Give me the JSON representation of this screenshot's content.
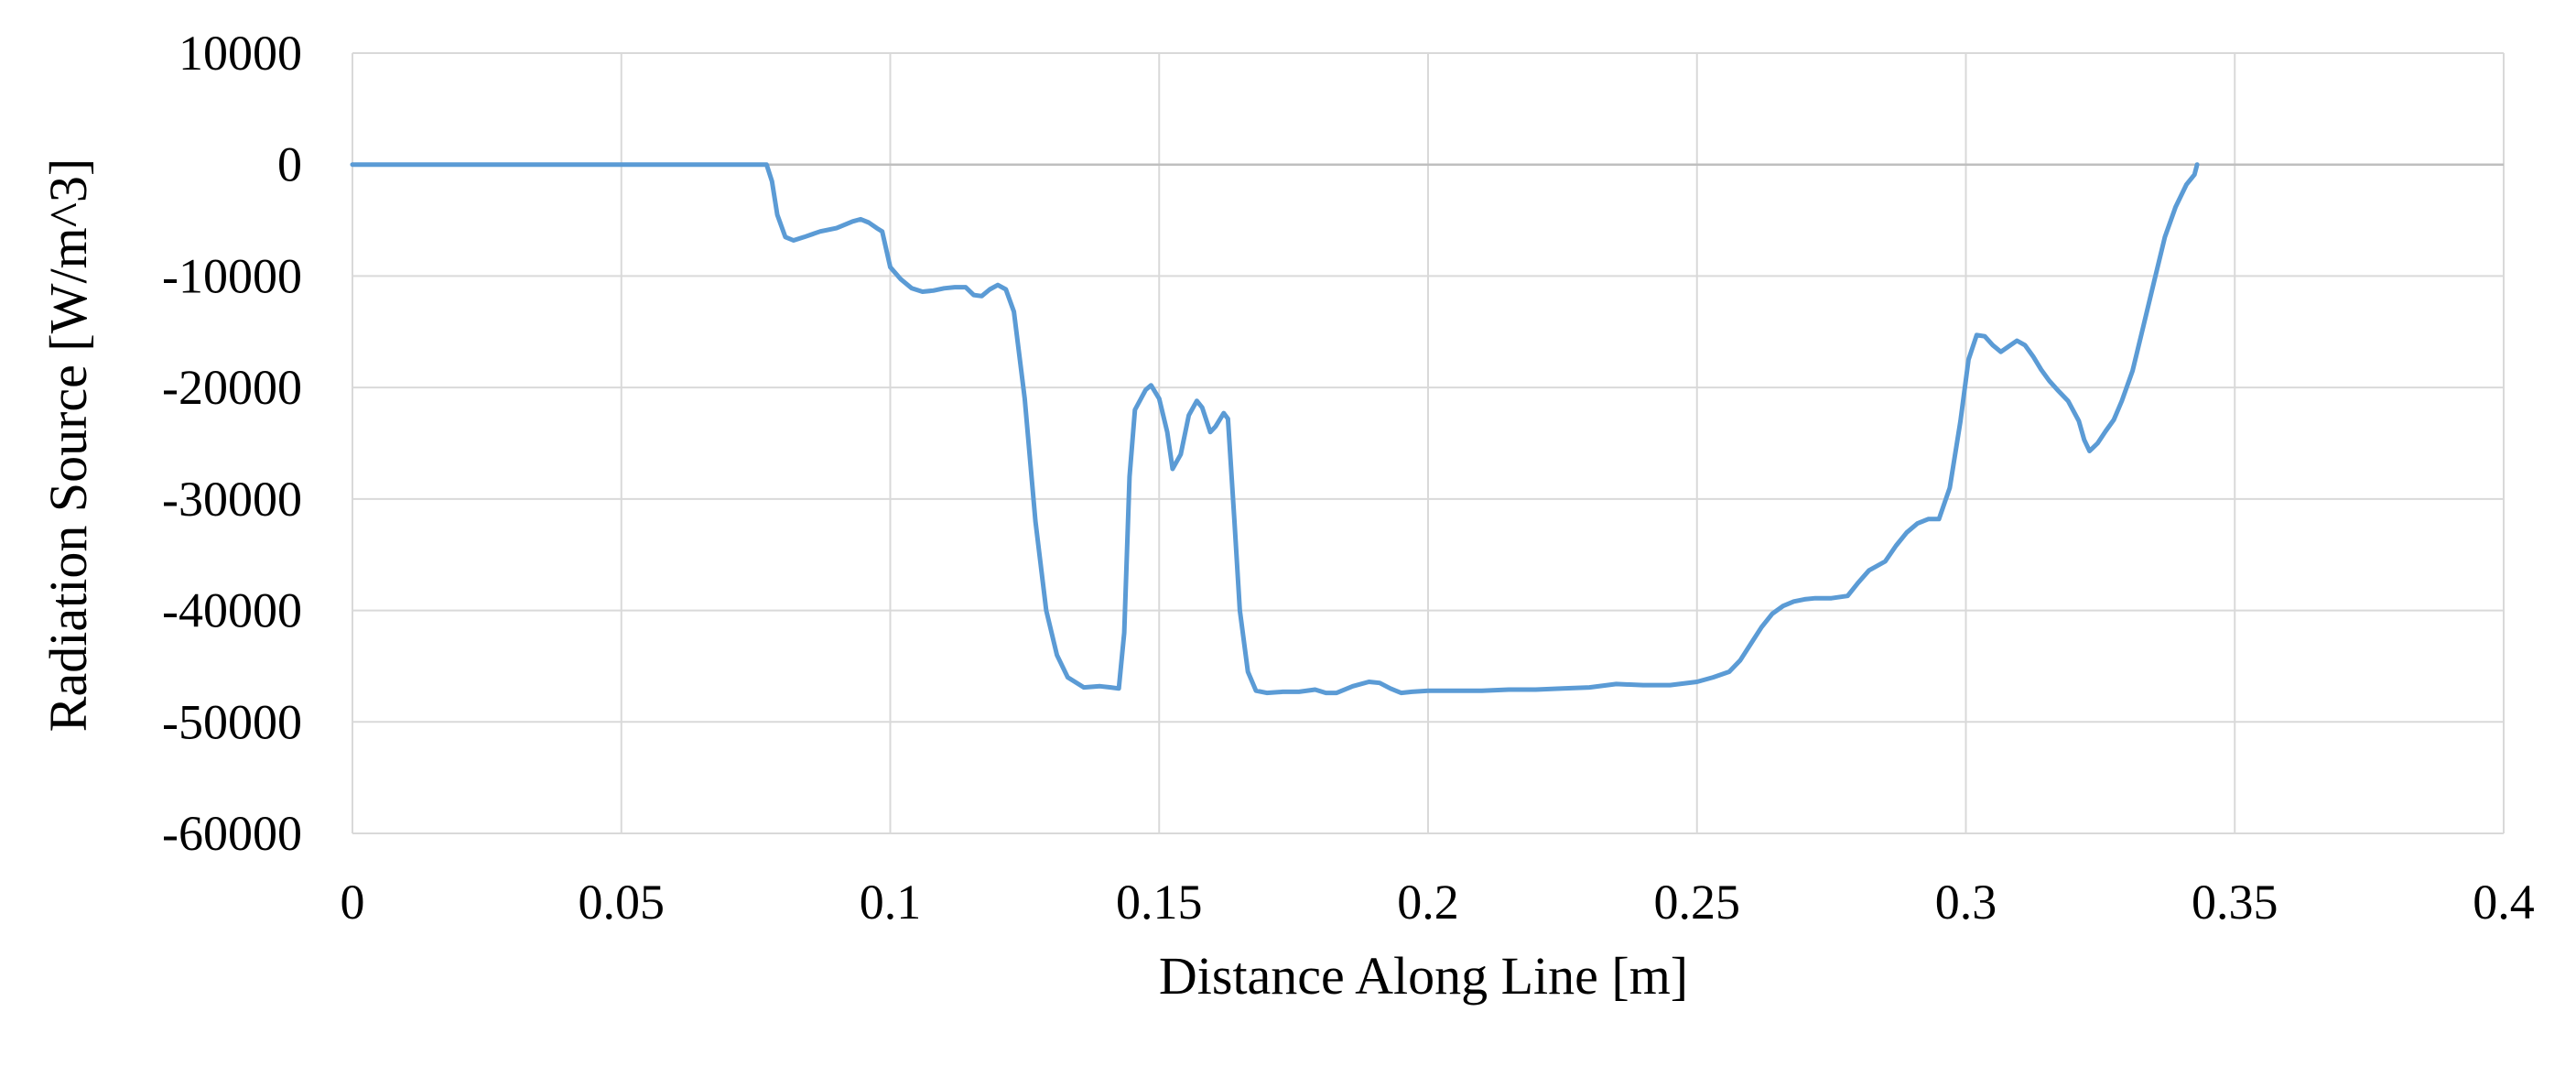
{
  "chart_data": {
    "type": "line",
    "title": "",
    "xlabel": "Distance Along Line [m]",
    "ylabel": "Radiation Source [W/m^3]",
    "xlim": [
      0,
      0.4
    ],
    "ylim": [
      -60000,
      10000
    ],
    "x_ticks": [
      0,
      0.05,
      0.1,
      0.15,
      0.2,
      0.25,
      0.3,
      0.35,
      0.4
    ],
    "y_ticks": [
      10000,
      0,
      -10000,
      -20000,
      -30000,
      -40000,
      -50000,
      -60000
    ],
    "x_tick_labels": [
      "0",
      "0.05",
      "0.1",
      "0.15",
      "0.2",
      "0.25",
      "0.3",
      "0.35",
      "0.4"
    ],
    "y_tick_labels": [
      "10000",
      "0",
      "-10000",
      "-20000",
      "-30000",
      "-40000",
      "-50000",
      "-60000"
    ],
    "grid": true,
    "legend": "none",
    "colors": {
      "line": "#5b9bd5",
      "grid": "#d9d9d9",
      "zero_line": "#bfbfbf"
    },
    "series": [
      {
        "x": [
          0,
          0.05,
          0.077,
          0.078,
          0.079,
          0.0805,
          0.082,
          0.084,
          0.087,
          0.09,
          0.093,
          0.0945,
          0.096,
          0.0975,
          0.0985,
          0.1,
          0.102,
          0.104,
          0.106,
          0.108,
          0.11,
          0.112,
          0.114,
          0.1155,
          0.117,
          0.1185,
          0.12,
          0.1215,
          0.123,
          0.125,
          0.127,
          0.129,
          0.131,
          0.133,
          0.136,
          0.139,
          0.141,
          0.1425,
          0.1435,
          0.1445,
          0.1455,
          0.1475,
          0.1485,
          0.15,
          0.1515,
          0.1525,
          0.154,
          0.1555,
          0.157,
          0.158,
          0.1595,
          0.1605,
          0.162,
          0.1628,
          0.164,
          0.165,
          0.1665,
          0.168,
          0.17,
          0.173,
          0.176,
          0.179,
          0.181,
          0.183,
          0.186,
          0.189,
          0.191,
          0.193,
          0.195,
          0.197,
          0.2,
          0.205,
          0.21,
          0.215,
          0.22,
          0.225,
          0.23,
          0.235,
          0.24,
          0.245,
          0.25,
          0.253,
          0.256,
          0.258,
          0.26,
          0.262,
          0.264,
          0.266,
          0.268,
          0.27,
          0.272,
          0.275,
          0.278,
          0.28,
          0.282,
          0.285,
          0.287,
          0.289,
          0.291,
          0.293,
          0.295,
          0.297,
          0.299,
          0.3005,
          0.302,
          0.3035,
          0.305,
          0.3065,
          0.308,
          0.3095,
          0.311,
          0.3125,
          0.314,
          0.3155,
          0.317,
          0.319,
          0.321,
          0.322,
          0.323,
          0.3245,
          0.326,
          0.3275,
          0.329,
          0.331,
          0.333,
          0.335,
          0.337,
          0.339,
          0.341,
          0.3425,
          0.343
        ],
        "y": [
          0,
          0,
          0,
          -1500,
          -4500,
          -6500,
          -6800,
          -6500,
          -6000,
          -5700,
          -5100,
          -4900,
          -5200,
          -5700,
          -6000,
          -9200,
          -10300,
          -11100,
          -11400,
          -11300,
          -11100,
          -11000,
          -11000,
          -11700,
          -11800,
          -11200,
          -10800,
          -11200,
          -13200,
          -21000,
          -32000,
          -40000,
          -44000,
          -46000,
          -46900,
          -46800,
          -46900,
          -47000,
          -42000,
          -28000,
          -22000,
          -20200,
          -19800,
          -21000,
          -24000,
          -27300,
          -26000,
          -22500,
          -21200,
          -21800,
          -24000,
          -23500,
          -22300,
          -22800,
          -32000,
          -40000,
          -45500,
          -47200,
          -47400,
          -47300,
          -47300,
          -47100,
          -47400,
          -47400,
          -46800,
          -46400,
          -46500,
          -47000,
          -47400,
          -47300,
          -47200,
          -47200,
          -47200,
          -47100,
          -47100,
          -47000,
          -46900,
          -46600,
          -46700,
          -46700,
          -46400,
          -46000,
          -45500,
          -44500,
          -43000,
          -41500,
          -40300,
          -39600,
          -39200,
          -39000,
          -38900,
          -38900,
          -38700,
          -37500,
          -36400,
          -35600,
          -34200,
          -33000,
          -32200,
          -31800,
          -31800,
          -29000,
          -23000,
          -17500,
          -15300,
          -15400,
          -16200,
          -16800,
          -16300,
          -15800,
          -16200,
          -17200,
          -18400,
          -19400,
          -20200,
          -21200,
          -23000,
          -24700,
          -25700,
          -25000,
          -23900,
          -22900,
          -21200,
          -18500,
          -14500,
          -10500,
          -6500,
          -3800,
          -1800,
          -900,
          0
        ]
      }
    ]
  }
}
